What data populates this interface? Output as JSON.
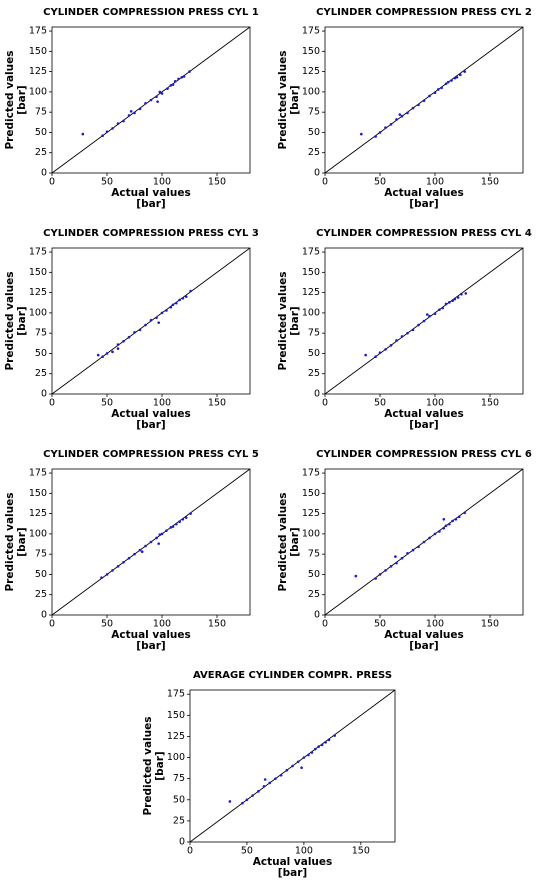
{
  "chart_data": [
    {
      "type": "scatter",
      "title": "CYLINDER COMPRESSION PRESS CYL 1",
      "xlabel": [
        "Actual values",
        "[bar]"
      ],
      "ylabel": [
        "Predicted values",
        "[bar]"
      ],
      "color": "#1a1ad0",
      "x": [
        28,
        46,
        50,
        55,
        60,
        65,
        70,
        75,
        80,
        85,
        90,
        95,
        98,
        100,
        105,
        108,
        110,
        112,
        115,
        118,
        120,
        125,
        96,
        72
      ],
      "y": [
        48,
        46,
        51,
        55,
        61,
        64,
        71,
        74,
        79,
        86,
        90,
        94,
        100,
        98,
        104,
        108,
        109,
        113,
        116,
        118,
        119,
        125,
        88,
        76
      ],
      "xlim": [
        0,
        180
      ],
      "ylim": [
        0,
        180
      ],
      "xticks": [
        0,
        50,
        100,
        150
      ],
      "yticks": [
        0,
        25,
        50,
        75,
        100,
        125,
        150,
        175
      ]
    },
    {
      "type": "scatter",
      "title": "CYLINDER COMPRESSION PRESS CYL 2",
      "xlabel": [
        "Actual values",
        "[bar]"
      ],
      "ylabel": [
        "Predicted values",
        "[bar]"
      ],
      "color": "#1a1ad0",
      "x": [
        33,
        46,
        50,
        55,
        60,
        65,
        70,
        75,
        80,
        85,
        90,
        95,
        100,
        103,
        106,
        110,
        112,
        115,
        118,
        120,
        123,
        127,
        68
      ],
      "y": [
        48,
        45,
        50,
        56,
        60,
        66,
        70,
        74,
        80,
        84,
        89,
        95,
        99,
        103,
        105,
        110,
        112,
        114,
        117,
        118,
        121,
        125,
        72
      ],
      "xlim": [
        0,
        180
      ],
      "ylim": [
        0,
        180
      ],
      "xticks": [
        0,
        50,
        100,
        150
      ],
      "yticks": [
        0,
        25,
        50,
        75,
        100,
        125,
        150,
        175
      ]
    },
    {
      "type": "scatter",
      "title": "CYLINDER COMPRESSION PRESS CYL 3",
      "xlabel": [
        "Actual values",
        "[bar]"
      ],
      "ylabel": [
        "Predicted values",
        "[bar]"
      ],
      "color": "#1a1ad0",
      "x": [
        42,
        46,
        50,
        55,
        60,
        65,
        70,
        75,
        80,
        85,
        90,
        95,
        100,
        104,
        108,
        110,
        113,
        116,
        119,
        122,
        126,
        97,
        60
      ],
      "y": [
        48,
        46,
        50,
        52,
        61,
        65,
        70,
        76,
        79,
        85,
        91,
        94,
        100,
        103,
        107,
        110,
        112,
        116,
        118,
        120,
        127,
        88,
        56
      ],
      "xlim": [
        0,
        180
      ],
      "ylim": [
        0,
        180
      ],
      "xticks": [
        0,
        50,
        100,
        150
      ],
      "yticks": [
        0,
        25,
        50,
        75,
        100,
        125,
        150,
        175
      ]
    },
    {
      "type": "scatter",
      "title": "CYLINDER COMPRESSION PRESS CYL 4",
      "xlabel": [
        "Actual values",
        "[bar]"
      ],
      "ylabel": [
        "Predicted values",
        "[bar]"
      ],
      "color": "#1a1ad0",
      "x": [
        37,
        46,
        50,
        55,
        60,
        65,
        70,
        75,
        80,
        85,
        90,
        95,
        100,
        104,
        107,
        110,
        113,
        116,
        118,
        121,
        124,
        128,
        93
      ],
      "y": [
        48,
        46,
        51,
        55,
        60,
        66,
        71,
        75,
        79,
        85,
        90,
        96,
        99,
        104,
        106,
        111,
        113,
        115,
        117,
        119,
        123,
        124,
        98
      ],
      "xlim": [
        0,
        180
      ],
      "ylim": [
        0,
        180
      ],
      "xticks": [
        0,
        50,
        100,
        150
      ],
      "yticks": [
        0,
        25,
        50,
        75,
        100,
        125,
        150,
        175
      ]
    },
    {
      "type": "scatter",
      "title": "CYLINDER COMPRESSION PRESS CYL 5",
      "xlabel": [
        "Actual values",
        "[bar]"
      ],
      "ylabel": [
        "Predicted values",
        "[bar]"
      ],
      "color": "#1a1ad0",
      "x": [
        45,
        50,
        55,
        60,
        65,
        70,
        75,
        80,
        85,
        90,
        95,
        98,
        100,
        104,
        108,
        110,
        113,
        116,
        119,
        122,
        126,
        97,
        82
      ],
      "y": [
        46,
        50,
        55,
        60,
        65,
        70,
        75,
        80,
        85,
        90,
        95,
        99,
        100,
        104,
        108,
        109,
        112,
        115,
        118,
        120,
        125,
        88,
        78
      ],
      "xlim": [
        0,
        180
      ],
      "ylim": [
        0,
        180
      ],
      "xticks": [
        0,
        50,
        100,
        150
      ],
      "yticks": [
        0,
        25,
        50,
        75,
        100,
        125,
        150,
        175
      ]
    },
    {
      "type": "scatter",
      "title": "CYLINDER COMPRESSION PRESS CYL 6",
      "xlabel": [
        "Actual values",
        "[bar]"
      ],
      "ylabel": [
        "Predicted values",
        "[bar]"
      ],
      "color": "#1a1ad0",
      "x": [
        28,
        46,
        50,
        55,
        60,
        65,
        70,
        75,
        80,
        85,
        90,
        95,
        100,
        104,
        108,
        110,
        113,
        116,
        119,
        122,
        127,
        64,
        108
      ],
      "y": [
        48,
        45,
        50,
        55,
        60,
        64,
        70,
        76,
        80,
        84,
        90,
        95,
        100,
        103,
        107,
        110,
        112,
        116,
        118,
        121,
        126,
        72,
        118
      ],
      "xlim": [
        0,
        180
      ],
      "ylim": [
        0,
        180
      ],
      "xticks": [
        0,
        50,
        100,
        150
      ],
      "yticks": [
        0,
        25,
        50,
        75,
        100,
        125,
        150,
        175
      ]
    },
    {
      "type": "scatter",
      "title": "AVERAGE CYLINDER COMPR. PRESS",
      "xlabel": [
        "Actual values",
        "[bar]"
      ],
      "ylabel": [
        "Predicted values",
        "[bar]"
      ],
      "color": "#1a1ad0",
      "x": [
        35,
        46,
        50,
        55,
        60,
        65,
        70,
        75,
        80,
        85,
        90,
        95,
        100,
        104,
        107,
        110,
        113,
        116,
        119,
        122,
        127,
        66,
        98
      ],
      "y": [
        48,
        46,
        50,
        55,
        60,
        66,
        70,
        75,
        79,
        85,
        90,
        95,
        100,
        103,
        106,
        110,
        113,
        115,
        118,
        121,
        126,
        74,
        88
      ],
      "xlim": [
        0,
        180
      ],
      "ylim": [
        0,
        180
      ],
      "xticks": [
        0,
        50,
        100,
        150
      ],
      "yticks": [
        0,
        25,
        50,
        75,
        100,
        125,
        150,
        175
      ]
    }
  ]
}
